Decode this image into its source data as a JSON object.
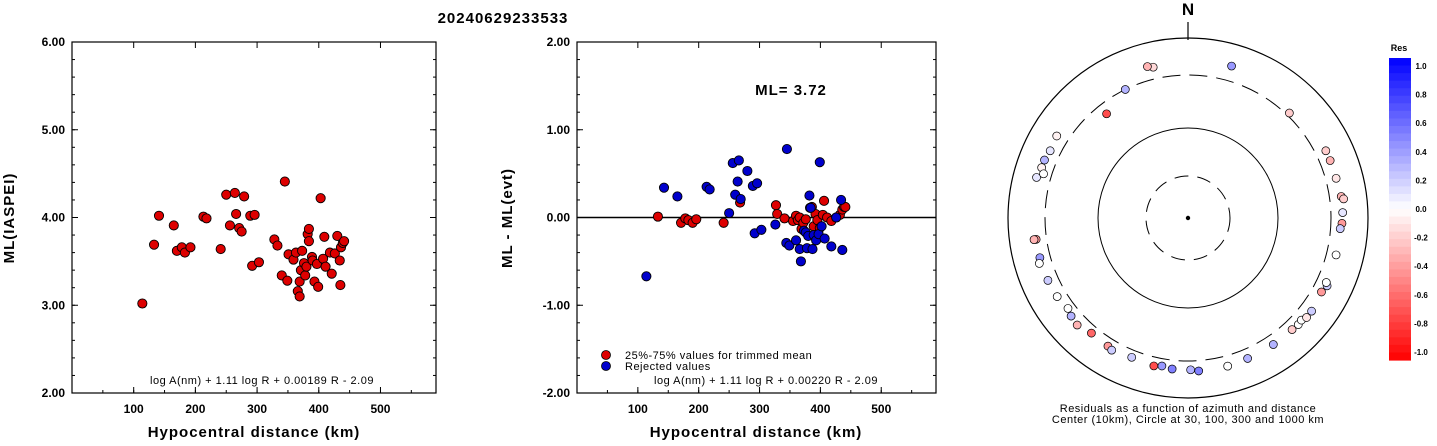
{
  "title": "20240629233533",
  "chart_data": [
    {
      "type": "scatter",
      "xlabel": "Hypocentral distance (km)",
      "ylabel": "ML(IASPEI)",
      "xlim": [
        0,
        590
      ],
      "ylim": [
        2.0,
        6.0
      ],
      "xticks": [
        "100",
        "200",
        "300",
        "400",
        "500"
      ],
      "yticks": [
        "2.00",
        "3.00",
        "4.00",
        "5.00",
        "6.00"
      ],
      "formula": "log A(nm) + 1.11 log R + 0.00189 R - 2.09",
      "series": [
        {
          "color": "#dd0000",
          "points": [
            [
              114,
              3.02
            ],
            [
              133,
              3.69
            ],
            [
              141,
              4.02
            ],
            [
              165,
              3.91
            ],
            [
              170,
              3.62
            ],
            [
              178,
              3.66
            ],
            [
              183,
              3.6
            ],
            [
              192,
              3.66
            ],
            [
              213,
              4.01
            ],
            [
              218,
              3.99
            ],
            [
              241,
              3.64
            ],
            [
              250,
              4.26
            ],
            [
              256,
              3.91
            ],
            [
              264,
              4.28
            ],
            [
              266,
              4.04
            ],
            [
              271,
              3.88
            ],
            [
              275,
              3.84
            ],
            [
              279,
              4.24
            ],
            [
              289,
              4.02
            ],
            [
              292,
              3.45
            ],
            [
              296,
              4.03
            ],
            [
              303,
              3.49
            ],
            [
              328,
              3.75
            ],
            [
              333,
              3.68
            ],
            [
              340,
              3.34
            ],
            [
              345,
              4.41
            ],
            [
              349,
              3.28
            ],
            [
              351,
              3.58
            ],
            [
              359,
              3.52
            ],
            [
              363,
              3.6
            ],
            [
              366,
              3.16
            ],
            [
              369,
              3.27
            ],
            [
              369,
              3.1
            ],
            [
              371,
              3.4
            ],
            [
              373,
              3.62
            ],
            [
              376,
              3.48
            ],
            [
              378,
              3.34
            ],
            [
              380,
              3.44
            ],
            [
              382,
              3.81
            ],
            [
              384,
              3.87
            ],
            [
              384,
              3.73
            ],
            [
              389,
              3.55
            ],
            [
              390,
              3.51
            ],
            [
              393,
              3.27
            ],
            [
              397,
              3.47
            ],
            [
              399,
              3.21
            ],
            [
              403,
              4.22
            ],
            [
              407,
              3.53
            ],
            [
              409,
              3.78
            ],
            [
              411,
              3.44
            ],
            [
              418,
              3.6
            ],
            [
              421,
              3.36
            ],
            [
              426,
              3.59
            ],
            [
              430,
              3.79
            ],
            [
              434,
              3.51
            ],
            [
              435,
              3.23
            ],
            [
              436,
              3.66
            ],
            [
              439,
              3.71
            ],
            [
              441,
              3.73
            ]
          ]
        }
      ]
    },
    {
      "type": "scatter",
      "xlabel": "Hypocentral distance (km)",
      "ylabel": "ML - ML(evt)",
      "xlim": [
        0,
        590
      ],
      "ylim": [
        -2.0,
        2.0
      ],
      "xticks": [
        "100",
        "200",
        "300",
        "400",
        "500"
      ],
      "yticks": [
        "-2.00",
        "-1.00",
        "0.00",
        "1.00",
        "2.00"
      ],
      "annotation": "ML= 3.72",
      "formula": "log A(nm) + 1.11 log R + 0.00220 R - 2.09",
      "reference_line": 0.0,
      "series": [
        {
          "name": "25%-75% values for trimmed mean",
          "color": "#dd0000",
          "points": [
            [
              133,
              0.01
            ],
            [
              171,
              -0.06
            ],
            [
              178,
              -0.01
            ],
            [
              183,
              -0.03
            ],
            [
              190,
              -0.06
            ],
            [
              196,
              -0.02
            ],
            [
              241,
              -0.06
            ],
            [
              268,
              0.17
            ],
            [
              327,
              0.14
            ],
            [
              329,
              0.04
            ],
            [
              341,
              -0.01
            ],
            [
              355,
              -0.04
            ],
            [
              360,
              0.02
            ],
            [
              363,
              -0.03
            ],
            [
              366,
              0.0
            ],
            [
              369,
              -0.13
            ],
            [
              372,
              -0.06
            ],
            [
              376,
              -0.02
            ],
            [
              383,
              0.11
            ],
            [
              386,
              0.12
            ],
            [
              389,
              -0.1
            ],
            [
              392,
              0.04
            ],
            [
              395,
              -0.03
            ],
            [
              399,
              -0.12
            ],
            [
              404,
              0.03
            ],
            [
              406,
              0.19
            ],
            [
              411,
              0.0
            ],
            [
              418,
              -0.04
            ],
            [
              426,
              0.0
            ],
            [
              432,
              0.03
            ],
            [
              436,
              0.09
            ],
            [
              439,
              0.12
            ],
            [
              441,
              0.12
            ]
          ]
        },
        {
          "name": "Rejected values",
          "color": "#0000cc",
          "points": [
            [
              114,
              -0.67
            ],
            [
              143,
              0.34
            ],
            [
              165,
              0.24
            ],
            [
              213,
              0.35
            ],
            [
              218,
              0.32
            ],
            [
              250,
              0.05
            ],
            [
              256,
              0.62
            ],
            [
              260,
              0.26
            ],
            [
              264,
              0.41
            ],
            [
              266,
              0.65
            ],
            [
              269,
              0.21
            ],
            [
              280,
              0.53
            ],
            [
              289,
              0.36
            ],
            [
              292,
              -0.18
            ],
            [
              296,
              0.39
            ],
            [
              303,
              -0.14
            ],
            [
              326,
              -0.08
            ],
            [
              344,
              -0.29
            ],
            [
              345,
              0.78
            ],
            [
              349,
              -0.32
            ],
            [
              360,
              -0.26
            ],
            [
              366,
              -0.36
            ],
            [
              368,
              -0.5
            ],
            [
              373,
              -0.15
            ],
            [
              376,
              -0.17
            ],
            [
              378,
              -0.35
            ],
            [
              380,
              -0.21
            ],
            [
              382,
              0.25
            ],
            [
              384,
              0.11
            ],
            [
              387,
              -0.36
            ],
            [
              389,
              -0.2
            ],
            [
              393,
              -0.26
            ],
            [
              397,
              -0.19
            ],
            [
              399,
              0.63
            ],
            [
              402,
              -0.1
            ],
            [
              407,
              -0.24
            ],
            [
              418,
              -0.33
            ],
            [
              426,
              0.0
            ],
            [
              434,
              0.2
            ],
            [
              436,
              -0.37
            ]
          ]
        }
      ]
    },
    {
      "type": "polar-scatter",
      "north_label": "N",
      "caption_line1": "Residuals as a function of azimuth and distance",
      "caption_line2": "Center (10km), Circle at 30, 100, 300 and 1000 km",
      "colorbar_title": "Res",
      "colorbar_ticks": [
        "1.0",
        "0.8",
        "0.6",
        "0.4",
        "0.2",
        "0.0",
        "-0.2",
        "-0.4",
        "-0.6",
        "-0.8",
        "-1.0"
      ],
      "stations": [
        {
          "az": 16,
          "dist": 490,
          "res": 0.4
        },
        {
          "az": 347,
          "dist": 440,
          "res": -0.15
        },
        {
          "az": 345,
          "dist": 470,
          "res": -0.3
        },
        {
          "az": 334,
          "dist": 300,
          "res": 0.3
        },
        {
          "az": 302,
          "dist": 440,
          "res": -0.05
        },
        {
          "az": 296,
          "dist": 420,
          "res": 0.1
        },
        {
          "az": 292,
          "dist": 440,
          "res": 0.3
        },
        {
          "az": 289,
          "dist": 440,
          "res": -0.05
        },
        {
          "az": 285,
          "dist": 470,
          "res": 0.1
        },
        {
          "az": 287,
          "dist": 390,
          "res": 0.0
        },
        {
          "az": 322,
          "dist": 240,
          "res": -0.7
        },
        {
          "az": 44,
          "dist": 330,
          "res": -0.2
        },
        {
          "az": 64,
          "dist": 420,
          "res": -0.2
        },
        {
          "az": 68,
          "dist": 420,
          "res": -0.3
        },
        {
          "az": 75,
          "dist": 420,
          "res": -0.1
        },
        {
          "az": 82,
          "dist": 440,
          "res": -0.3
        },
        {
          "az": 83,
          "dist": 470,
          "res": -0.2
        },
        {
          "az": 88,
          "dist": 440,
          "res": 0.1
        },
        {
          "az": 92,
          "dist": 430,
          "res": -0.4
        },
        {
          "az": 94,
          "dist": 410,
          "res": 0.2
        },
        {
          "az": 262,
          "dist": 420,
          "res": -0.4
        },
        {
          "az": 262,
          "dist": 450,
          "res": -0.3
        },
        {
          "az": 255,
          "dist": 420,
          "res": 0.4
        },
        {
          "az": 253,
          "dist": 450,
          "res": 0.0
        },
        {
          "az": 246,
          "dist": 420,
          "res": 0.2
        },
        {
          "az": 239,
          "dist": 410,
          "res": 0.0
        },
        {
          "az": 220,
          "dist": 380,
          "res": -0.6
        },
        {
          "az": 226,
          "dist": 430,
          "res": -0.3
        },
        {
          "az": 230,
          "dist": 410,
          "res": 0.3
        },
        {
          "az": 233,
          "dist": 380,
          "res": 0.0
        },
        {
          "az": 212,
          "dist": 390,
          "res": -0.4
        },
        {
          "az": 210,
          "dist": 410,
          "res": 0.2
        },
        {
          "az": 202,
          "dist": 380,
          "res": 0.2
        },
        {
          "az": 193,
          "dist": 400,
          "res": -0.7
        },
        {
          "az": 190,
          "dist": 380,
          "res": 0.4
        },
        {
          "az": 186,
          "dist": 400,
          "res": 0.5
        },
        {
          "az": 179,
          "dist": 400,
          "res": 0.3
        },
        {
          "az": 176,
          "dist": 420,
          "res": 0.5
        },
        {
          "az": 165,
          "dist": 420,
          "res": 0.0
        },
        {
          "az": 157,
          "dist": 410,
          "res": 0.3
        },
        {
          "az": 146,
          "dist": 410,
          "res": 0.3
        },
        {
          "az": 137,
          "dist": 410,
          "res": -0.2
        },
        {
          "az": 134,
          "dist": 420,
          "res": 0.0
        },
        {
          "az": 132,
          "dist": 410,
          "res": 0.0
        },
        {
          "az": 130,
          "dist": 440,
          "res": -0.1
        },
        {
          "az": 127,
          "dist": 440,
          "res": 0.2
        },
        {
          "az": 119,
          "dist": 410,
          "res": -0.4
        },
        {
          "az": 116,
          "dist": 440,
          "res": 0.2
        },
        {
          "az": 115,
          "dist": 410,
          "res": 0.0
        },
        {
          "az": 104,
          "dist": 410,
          "res": 0.0
        }
      ]
    }
  ]
}
